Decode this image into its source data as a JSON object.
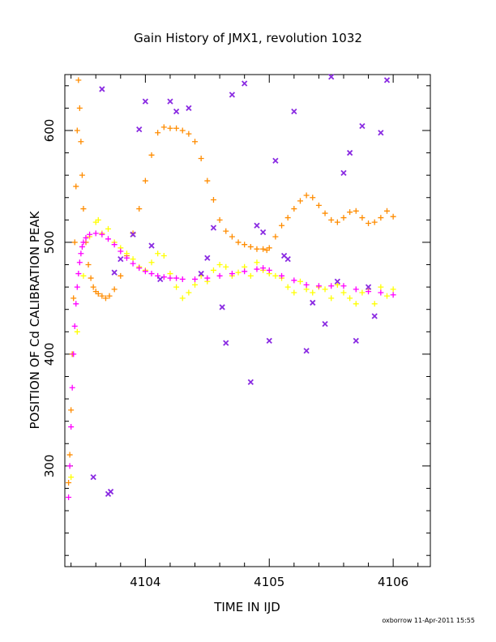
{
  "chart_data": {
    "type": "scatter",
    "title": "Gain History of JMX1, revolution 1032",
    "xlabel": "TIME IN IJD",
    "ylabel": "POSITION OF Cd CALIBRATION PEAK",
    "xlim": [
      4103.35,
      4106.3
    ],
    "ylim": [
      210,
      650
    ],
    "x_ticks": [
      4104,
      4105,
      4106
    ],
    "x_tick_labels": [
      "4104",
      "4105",
      "4106"
    ],
    "y_ticks": [
      300,
      400,
      500,
      600
    ],
    "y_tick_labels": [
      "300",
      "400",
      "500",
      "600"
    ],
    "grid": false,
    "legend": "none",
    "series": [
      {
        "color": "#ff8c00",
        "marker": "+",
        "x": [
          4103.38,
          4103.39,
          4103.4,
          4103.41,
          4103.42,
          4103.43,
          4103.44,
          4103.45,
          4103.46,
          4103.47,
          4103.48,
          4103.49,
          4103.5,
          4103.52,
          4103.54,
          4103.56,
          4103.58,
          4103.6,
          4103.62,
          4103.65,
          4103.68,
          4103.71,
          4103.75,
          4103.8,
          4103.85,
          4103.9,
          4103.95,
          4104.0,
          4104.05,
          4104.1,
          4104.15,
          4104.2,
          4104.25,
          4104.3,
          4104.35,
          4104.4,
          4104.45,
          4104.5,
          4104.55,
          4104.6,
          4104.65,
          4104.7,
          4104.75,
          4104.8,
          4104.85,
          4104.9,
          4104.95,
          4104.98,
          4105.0,
          4105.05,
          4105.1,
          4105.15,
          4105.2,
          4105.25,
          4105.3,
          4105.35,
          4105.4,
          4105.45,
          4105.5,
          4105.55,
          4105.6,
          4105.65,
          4105.7,
          4105.75,
          4105.8,
          4105.85,
          4105.9,
          4105.95,
          4106.0
        ],
        "y": [
          285,
          310,
          350,
          400,
          450,
          500,
          550,
          600,
          645,
          620,
          590,
          560,
          530,
          500,
          480,
          468,
          460,
          456,
          454,
          452,
          450,
          452,
          458,
          470,
          488,
          508,
          530,
          555,
          578,
          598,
          603,
          602,
          602,
          600,
          597,
          590,
          575,
          555,
          538,
          520,
          510,
          505,
          500,
          498,
          496,
          494,
          494,
          493,
          495,
          505,
          515,
          522,
          530,
          537,
          542,
          540,
          533,
          526,
          520,
          518,
          522,
          527,
          528,
          522,
          517,
          518,
          522,
          528,
          523
        ]
      },
      {
        "color": "#ffff00",
        "marker": "+",
        "x": [
          4103.4,
          4103.45,
          4103.5,
          4103.55,
          4103.6,
          4103.62,
          4103.65,
          4103.7,
          4103.75,
          4103.8,
          4103.85,
          4103.9,
          4103.95,
          4104.0,
          4104.05,
          4104.1,
          4104.15,
          4104.2,
          4104.25,
          4104.3,
          4104.35,
          4104.4,
          4104.45,
          4104.5,
          4104.55,
          4104.6,
          4104.65,
          4104.7,
          4104.75,
          4104.8,
          4104.85,
          4104.9,
          4104.95,
          4105.0,
          4105.05,
          4105.1,
          4105.15,
          4105.2,
          4105.25,
          4105.3,
          4105.35,
          4105.4,
          4105.45,
          4105.5,
          4105.55,
          4105.6,
          4105.65,
          4105.7,
          4105.75,
          4105.8,
          4105.85,
          4105.9,
          4105.95,
          4106.0
        ],
        "y": [
          290,
          420,
          470,
          505,
          518,
          520,
          508,
          512,
          500,
          495,
          490,
          485,
          478,
          475,
          482,
          490,
          488,
          472,
          460,
          450,
          455,
          462,
          470,
          465,
          475,
          480,
          478,
          470,
          473,
          478,
          470,
          482,
          475,
          472,
          470,
          468,
          460,
          455,
          465,
          458,
          455,
          460,
          458,
          450,
          462,
          455,
          450,
          445,
          455,
          458,
          445,
          460,
          452,
          458
        ]
      },
      {
        "color": "#ff00ff",
        "marker": "+",
        "x": [
          4103.38,
          4103.39,
          4103.4,
          4103.41,
          4103.42,
          4103.43,
          4103.44,
          4103.45,
          4103.46,
          4103.47,
          4103.48,
          4103.49,
          4103.5,
          4103.52,
          4103.55,
          4103.6,
          4103.65,
          4103.7,
          4103.75,
          4103.8,
          4103.85,
          4103.9,
          4103.95,
          4104.0,
          4104.05,
          4104.1,
          4104.15,
          4104.2,
          4104.25,
          4104.3,
          4104.4,
          4104.5,
          4104.6,
          4104.7,
          4104.8,
          4104.9,
          4104.95,
          4105.0,
          4105.1,
          4105.2,
          4105.3,
          4105.4,
          4105.5,
          4105.6,
          4105.7,
          4105.8,
          4105.9,
          4106.0
        ],
        "y": [
          272,
          300,
          335,
          370,
          400,
          425,
          445,
          460,
          472,
          482,
          490,
          496,
          500,
          504,
          507,
          508,
          507,
          503,
          498,
          492,
          486,
          481,
          477,
          474,
          472,
          470,
          469,
          468,
          468,
          467,
          467,
          468,
          470,
          472,
          474,
          476,
          477,
          475,
          470,
          466,
          462,
          461,
          461,
          461,
          458,
          456,
          455,
          453
        ]
      },
      {
        "color": "#8a2be2",
        "marker": "x",
        "x": [
          4103.5,
          4103.58,
          4103.65,
          4103.72,
          4103.7,
          4103.75,
          4103.8,
          4103.9,
          4103.95,
          4104.0,
          4104.05,
          4104.08,
          4104.12,
          4104.2,
          4104.25,
          4104.35,
          4104.45,
          4104.5,
          4104.55,
          4104.62,
          4104.65,
          4104.7,
          4104.8,
          4104.85,
          4104.9,
          4104.95,
          4105.0,
          4105.05,
          4105.12,
          4105.15,
          4105.2,
          4105.3,
          4105.35,
          4105.45,
          4105.5,
          4105.55,
          4105.6,
          4105.65,
          4105.7,
          4105.75,
          4105.8,
          4105.85,
          4105.9,
          4105.95
        ],
        "y": [
          655,
          290,
          637,
          277,
          275,
          473,
          485,
          507,
          601,
          626,
          497,
          652,
          467,
          626,
          617,
          620,
          472,
          486,
          513,
          442,
          410,
          632,
          642,
          375,
          515,
          509,
          412,
          573,
          488,
          485,
          617,
          403,
          446,
          427,
          648,
          465,
          562,
          580,
          412,
          604,
          460,
          434,
          598,
          645
        ]
      }
    ],
    "footer": "oxborrow 11-Apr-2011 15:55"
  }
}
